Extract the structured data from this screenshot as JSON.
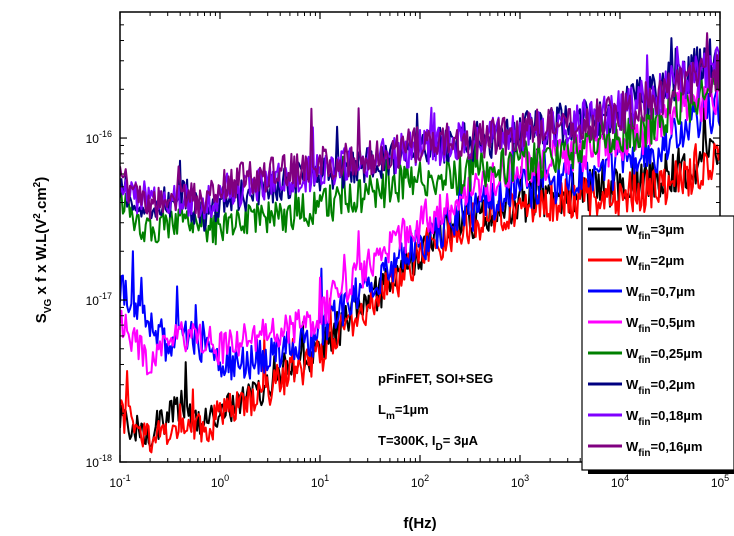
{
  "chart_data": {
    "type": "line",
    "xlabel": "f(Hz)",
    "ylabel": {
      "base": "S",
      "sub": "VG",
      "rest": " x f x W.L(V",
      "sup": "2",
      "rest2": ".cm",
      "sup2": "2",
      "tail": ")"
    },
    "x_scale": "log",
    "y_scale": "log",
    "xlim": [
      0.1,
      100000
    ],
    "ylim": [
      1e-18,
      6e-16
    ],
    "x_ticks": [
      {
        "base": "10",
        "exp": "-1",
        "value": 0.1
      },
      {
        "base": "10",
        "exp": "0",
        "value": 1
      },
      {
        "base": "10",
        "exp": "1",
        "value": 10
      },
      {
        "base": "10",
        "exp": "2",
        "value": 100
      },
      {
        "base": "10",
        "exp": "3",
        "value": 1000
      },
      {
        "base": "10",
        "exp": "4",
        "value": 10000
      },
      {
        "base": "10",
        "exp": "5",
        "value": 100000
      }
    ],
    "y_ticks": [
      {
        "base": "10",
        "exp": "-18",
        "value": 1e-18
      },
      {
        "base": "10",
        "exp": "-17",
        "value": 1e-17
      },
      {
        "base": "10",
        "exp": "-16",
        "value": 1e-16
      }
    ],
    "annotations": [
      {
        "text": "pFinFET, SOI+SEG"
      },
      {
        "base": "L",
        "sub": "m",
        "rest": "=1µm"
      },
      {
        "base": "T=300K, I",
        "sub": "D",
        "rest": "= 3µA"
      }
    ],
    "legend_position": "right",
    "series": [
      {
        "label_base": "W",
        "label_sub": "fin",
        "label_rest": "=3µm",
        "color": "#000000",
        "points": [
          [
            0.1,
            1.8e-18
          ],
          [
            0.2,
            1.5e-18
          ],
          [
            0.4,
            2.2e-18
          ],
          [
            0.7,
            1.7e-18
          ],
          [
            1,
            2e-18
          ],
          [
            2,
            2.5e-18
          ],
          [
            4,
            3.5e-18
          ],
          [
            10,
            5e-18
          ],
          [
            20,
            8e-18
          ],
          [
            50,
            1.3e-17
          ],
          [
            100,
            2e-17
          ],
          [
            200,
            2.8e-17
          ],
          [
            500,
            3.5e-17
          ],
          [
            1000,
            4e-17
          ],
          [
            3000,
            4.5e-17
          ],
          [
            10000,
            5e-17
          ],
          [
            30000,
            6e-17
          ],
          [
            100000,
            8e-17
          ]
        ]
      },
      {
        "label_base": "W",
        "label_sub": "fin",
        "label_rest": "=2µm",
        "color": "#ff0000",
        "points": [
          [
            0.1,
            2e-18
          ],
          [
            0.2,
            1.4e-18
          ],
          [
            0.4,
            1.8e-18
          ],
          [
            0.7,
            1.5e-18
          ],
          [
            1,
            2e-18
          ],
          [
            2,
            2.3e-18
          ],
          [
            4,
            3.2e-18
          ],
          [
            10,
            4.5e-18
          ],
          [
            20,
            7.5e-18
          ],
          [
            50,
            1.2e-17
          ],
          [
            100,
            1.8e-17
          ],
          [
            200,
            2.6e-17
          ],
          [
            500,
            3.3e-17
          ],
          [
            1000,
            3.8e-17
          ],
          [
            3000,
            4.2e-17
          ],
          [
            10000,
            4.5e-17
          ],
          [
            30000,
            5e-17
          ],
          [
            100000,
            7e-17
          ]
        ]
      },
      {
        "label_base": "W",
        "label_sub": "fin",
        "label_rest": "=0,7µm",
        "color": "#0000ff",
        "points": [
          [
            0.1,
            1.2e-17
          ],
          [
            0.2,
            7e-18
          ],
          [
            0.3,
            5e-18
          ],
          [
            0.5,
            6e-18
          ],
          [
            0.8,
            4.5e-18
          ],
          [
            1,
            4e-18
          ],
          [
            2,
            4.2e-18
          ],
          [
            4,
            4.8e-18
          ],
          [
            10,
            6e-18
          ],
          [
            20,
            1e-17
          ],
          [
            50,
            1.6e-17
          ],
          [
            100,
            2.2e-17
          ],
          [
            200,
            3e-17
          ],
          [
            500,
            4e-17
          ],
          [
            1000,
            4.8e-17
          ],
          [
            3000,
            5.5e-17
          ],
          [
            10000,
            6.5e-17
          ],
          [
            30000,
            9e-17
          ],
          [
            100000,
            1.6e-16
          ]
        ]
      },
      {
        "label_base": "W",
        "label_sub": "fin",
        "label_rest": "=0,5µm",
        "color": "#ff00ff",
        "points": [
          [
            0.1,
            7.5e-18
          ],
          [
            0.2,
            4e-18
          ],
          [
            0.3,
            5.5e-18
          ],
          [
            0.5,
            6e-18
          ],
          [
            0.8,
            5.5e-18
          ],
          [
            1,
            5e-18
          ],
          [
            2,
            6e-18
          ],
          [
            4,
            6.5e-18
          ],
          [
            10,
            8e-18
          ],
          [
            20,
            1.3e-17
          ],
          [
            50,
            2e-17
          ],
          [
            100,
            3e-17
          ],
          [
            200,
            4e-17
          ],
          [
            500,
            5.5e-17
          ],
          [
            1000,
            6.5e-17
          ],
          [
            3000,
            7.5e-17
          ],
          [
            10000,
            9e-17
          ],
          [
            30000,
            1.3e-16
          ],
          [
            100000,
            2e-16
          ]
        ]
      },
      {
        "label_base": "W",
        "label_sub": "fin",
        "label_rest": "=0,25µm",
        "color": "#008000",
        "points": [
          [
            0.1,
            4e-17
          ],
          [
            0.2,
            2.6e-17
          ],
          [
            0.4,
            3.2e-17
          ],
          [
            0.7,
            3e-17
          ],
          [
            1,
            2.6e-17
          ],
          [
            2,
            3.2e-17
          ],
          [
            5,
            3.4e-17
          ],
          [
            10,
            3.8e-17
          ],
          [
            20,
            4.3e-17
          ],
          [
            50,
            5e-17
          ],
          [
            100,
            5.5e-17
          ],
          [
            200,
            5.8e-17
          ],
          [
            500,
            6.5e-17
          ],
          [
            1000,
            7.2e-17
          ],
          [
            3000,
            8e-17
          ],
          [
            10000,
            1e-16
          ],
          [
            30000,
            1.4e-16
          ],
          [
            100000,
            2.2e-16
          ]
        ]
      },
      {
        "label_base": "W",
        "label_sub": "fin",
        "label_rest": "=0,2µm",
        "color": "#000080",
        "points": [
          [
            0.1,
            5e-17
          ],
          [
            0.2,
            3.5e-17
          ],
          [
            0.4,
            4.5e-17
          ],
          [
            0.7,
            3.2e-17
          ],
          [
            1,
            4e-17
          ],
          [
            2,
            4.6e-17
          ],
          [
            5,
            5.5e-17
          ],
          [
            10,
            6e-17
          ],
          [
            20,
            6.5e-17
          ],
          [
            50,
            7.5e-17
          ],
          [
            100,
            8.5e-17
          ],
          [
            200,
            9e-17
          ],
          [
            500,
            1e-16
          ],
          [
            1000,
            1.1e-16
          ],
          [
            3000,
            1.25e-16
          ],
          [
            10000,
            1.5e-16
          ],
          [
            30000,
            2.2e-16
          ],
          [
            100000,
            3.2e-16
          ]
        ]
      },
      {
        "label_base": "W",
        "label_sub": "fin",
        "label_rest": "=0,18µm",
        "color": "#7f00ff",
        "points": [
          [
            0.1,
            4.5e-17
          ],
          [
            0.2,
            4e-17
          ],
          [
            0.4,
            4.2e-17
          ],
          [
            0.7,
            3.8e-17
          ],
          [
            1,
            4.5e-17
          ],
          [
            2,
            5e-17
          ],
          [
            5,
            5.6e-17
          ],
          [
            10,
            6.3e-17
          ],
          [
            20,
            6.8e-17
          ],
          [
            50,
            7.8e-17
          ],
          [
            100,
            8.6e-17
          ],
          [
            200,
            9.2e-17
          ],
          [
            500,
            1e-16
          ],
          [
            1000,
            1.05e-16
          ],
          [
            3000,
            1.2e-16
          ],
          [
            10000,
            1.45e-16
          ],
          [
            30000,
            2e-16
          ],
          [
            100000,
            2.8e-16
          ]
        ]
      },
      {
        "label_base": "W",
        "label_sub": "fin",
        "label_rest": "=0,16µm",
        "color": "#800080",
        "points": [
          [
            0.1,
            5.5e-17
          ],
          [
            0.2,
            3.8e-17
          ],
          [
            0.4,
            4.4e-17
          ],
          [
            0.7,
            4e-17
          ],
          [
            1,
            5e-17
          ],
          [
            2,
            5.8e-17
          ],
          [
            5,
            6.2e-17
          ],
          [
            10,
            7e-17
          ],
          [
            20,
            7.5e-17
          ],
          [
            50,
            8e-17
          ],
          [
            100,
            9e-17
          ],
          [
            200,
            9.5e-17
          ],
          [
            500,
            1e-16
          ],
          [
            1000,
            1.08e-16
          ],
          [
            3000,
            1.2e-16
          ],
          [
            10000,
            1.4e-16
          ],
          [
            30000,
            1.9e-16
          ],
          [
            100000,
            2.6e-16
          ]
        ]
      }
    ]
  }
}
